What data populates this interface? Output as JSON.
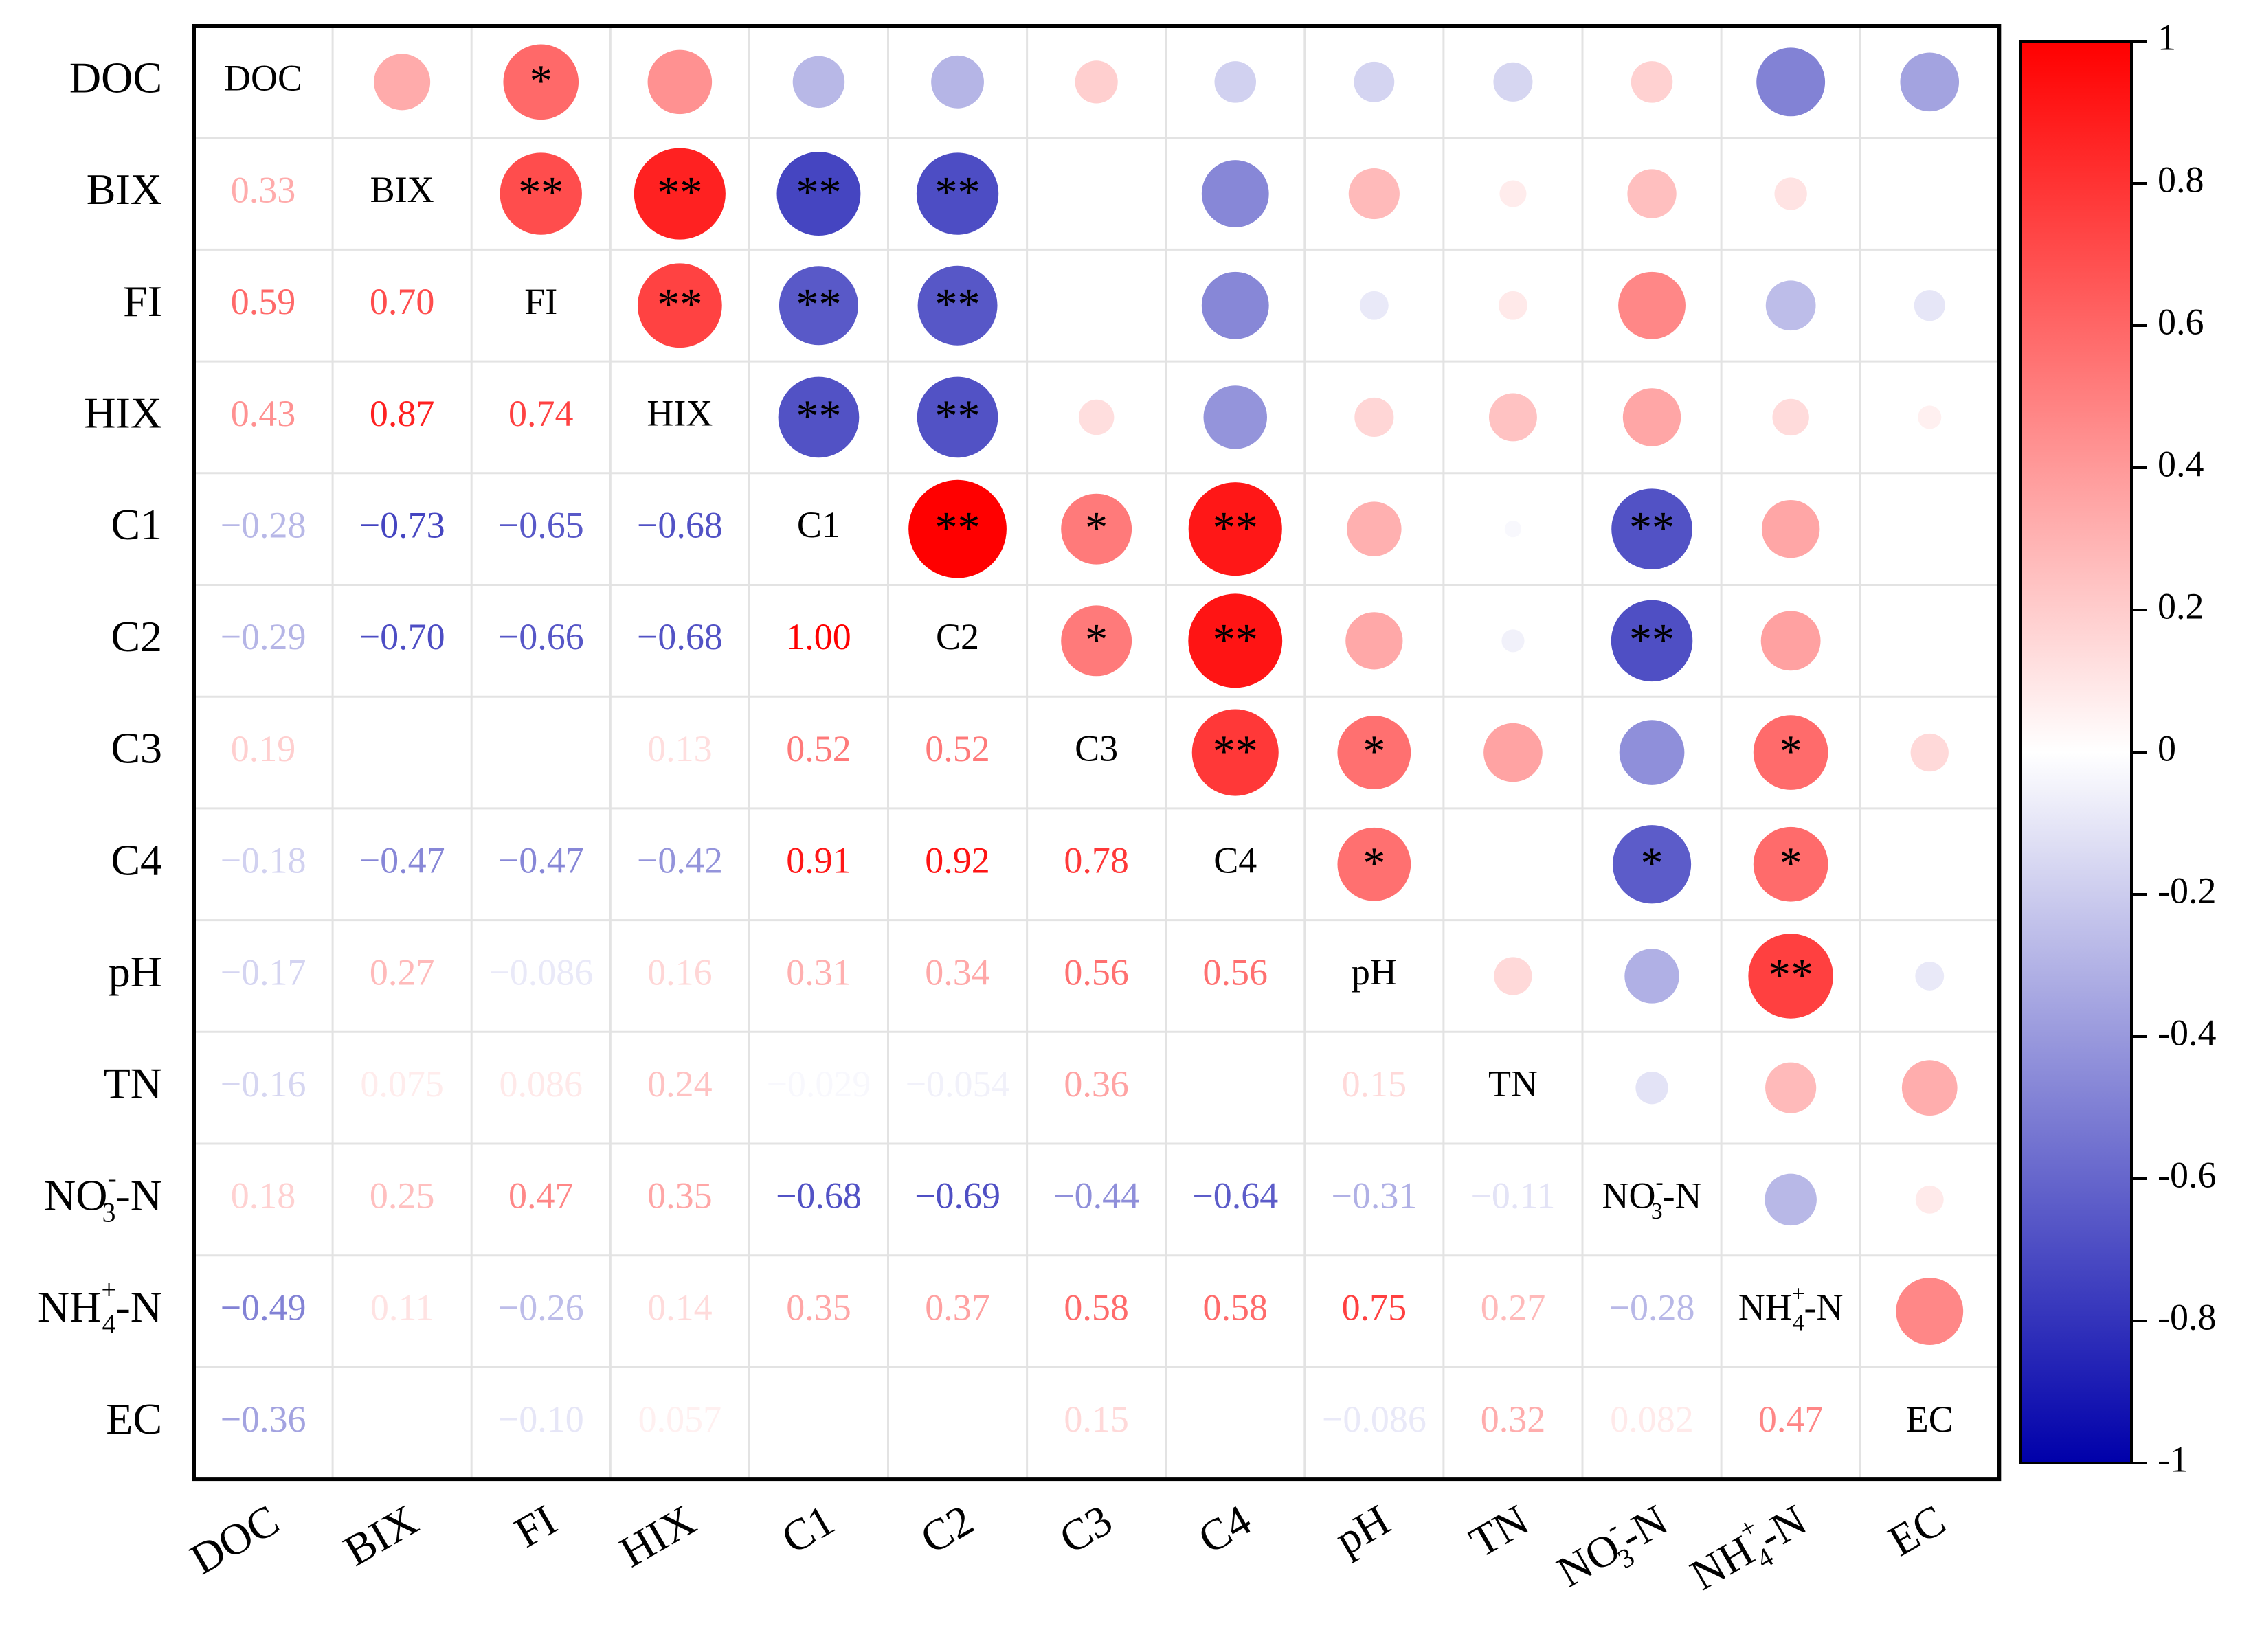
{
  "chart_data": {
    "type": "heatmap",
    "subtype": "correlation-matrix",
    "variables": [
      "DOC",
      "BIX",
      "FI",
      "HIX",
      "C1",
      "C2",
      "C3",
      "C4",
      "pH",
      "TN",
      "NO3-N",
      "NH4+-N",
      "EC"
    ],
    "variable_display": [
      {
        "base": "DOC"
      },
      {
        "base": "BIX"
      },
      {
        "base": "FI"
      },
      {
        "base": "HIX"
      },
      {
        "base": "C1"
      },
      {
        "base": "C2"
      },
      {
        "base": "C3"
      },
      {
        "base": "C4"
      },
      {
        "base": "pH"
      },
      {
        "base": "TN"
      },
      {
        "base": "NO",
        "sub": "3",
        "sup": "-",
        "tail": "-N"
      },
      {
        "base": "NH",
        "sub": "4",
        "sup": "+",
        "tail": "-N"
      },
      {
        "base": "EC"
      }
    ],
    "lower_labels": [
      [],
      [
        "0.33"
      ],
      [
        "0.59",
        "0.70"
      ],
      [
        "0.43",
        "0.87",
        "0.74"
      ],
      [
        "-0.28",
        "-0.73",
        "-0.65",
        "-0.68"
      ],
      [
        "-0.29",
        "-0.70",
        "-0.66",
        "-0.68",
        "1.00"
      ],
      [
        "0.19",
        "",
        "",
        "0.13",
        "0.52",
        "0.52"
      ],
      [
        "-0.18",
        "-0.47",
        "-0.47",
        "-0.42",
        "0.91",
        "0.92",
        "0.78"
      ],
      [
        "-0.17",
        "0.27",
        "-0.086",
        "0.16",
        "0.31",
        "0.34",
        "0.56",
        "0.56"
      ],
      [
        "-0.16",
        "0.075",
        "0.086",
        "0.24",
        "-0.029",
        "-0.054",
        "0.36",
        "",
        "0.15"
      ],
      [
        "0.18",
        "0.25",
        "0.47",
        "0.35",
        "-0.68",
        "-0.69",
        "-0.44",
        "-0.64",
        "-0.31",
        "-0.11"
      ],
      [
        "-0.49",
        "0.11",
        "-0.26",
        "0.14",
        "0.35",
        "0.37",
        "0.58",
        "0.58",
        "0.75",
        "0.27",
        "-0.28"
      ],
      [
        "-0.36",
        "",
        "-0.10",
        "0.057",
        "",
        "",
        "0.15",
        "",
        "-0.086",
        "0.32",
        "0.082",
        "0.47"
      ]
    ],
    "significance": [
      [
        "",
        "",
        "*",
        "",
        "",
        "",
        "",
        "",
        "",
        "",
        "",
        "",
        ""
      ],
      [
        "",
        "",
        "**",
        "**",
        "**",
        "**",
        "",
        "",
        "",
        "",
        "",
        "",
        ""
      ],
      [
        "",
        "",
        "",
        "**",
        "**",
        "**",
        "",
        "",
        "",
        "",
        "",
        "",
        ""
      ],
      [
        "",
        "",
        "",
        "",
        "**",
        "**",
        "",
        "",
        "",
        "",
        "",
        "",
        ""
      ],
      [
        "",
        "",
        "",
        "",
        "",
        "**",
        "*",
        "**",
        "",
        "",
        "**",
        "",
        ""
      ],
      [
        "",
        "",
        "",
        "",
        "",
        "",
        "*",
        "**",
        "",
        "",
        "**",
        "",
        ""
      ],
      [
        "",
        "",
        "",
        "",
        "",
        "",
        "",
        "**",
        "*",
        "",
        "",
        "*",
        ""
      ],
      [
        "",
        "",
        "",
        "",
        "",
        "",
        "",
        "",
        "*",
        "",
        "*",
        "*",
        ""
      ],
      [
        "",
        "",
        "",
        "",
        "",
        "",
        "",
        "",
        "",
        "",
        "",
        "**",
        ""
      ],
      [
        "",
        "",
        "",
        "",
        "",
        "",
        "",
        "",
        "",
        "",
        "",
        "",
        ""
      ],
      [
        "",
        "",
        "",
        "",
        "",
        "",
        "",
        "",
        "",
        "",
        "",
        "",
        ""
      ],
      [
        "",
        "",
        "",
        "",
        "",
        "",
        "",
        "",
        "",
        "",
        "",
        "",
        ""
      ],
      [
        "",
        "",
        "",
        "",
        "",
        "",
        "",
        "",
        "",
        "",
        "",
        "",
        ""
      ]
    ],
    "colorbar": {
      "range": [
        -1,
        1
      ],
      "tick_labels": [
        "1",
        "0.8",
        "0.6",
        "0.4",
        "0.2",
        "0",
        "-0.2",
        "-0.4",
        "-0.6",
        "-0.8",
        "-1"
      ],
      "low_color": "#0000aa",
      "mid_color": "#ffffff",
      "high_color": "#ff0000"
    },
    "legend_position": "right",
    "grid": true
  }
}
